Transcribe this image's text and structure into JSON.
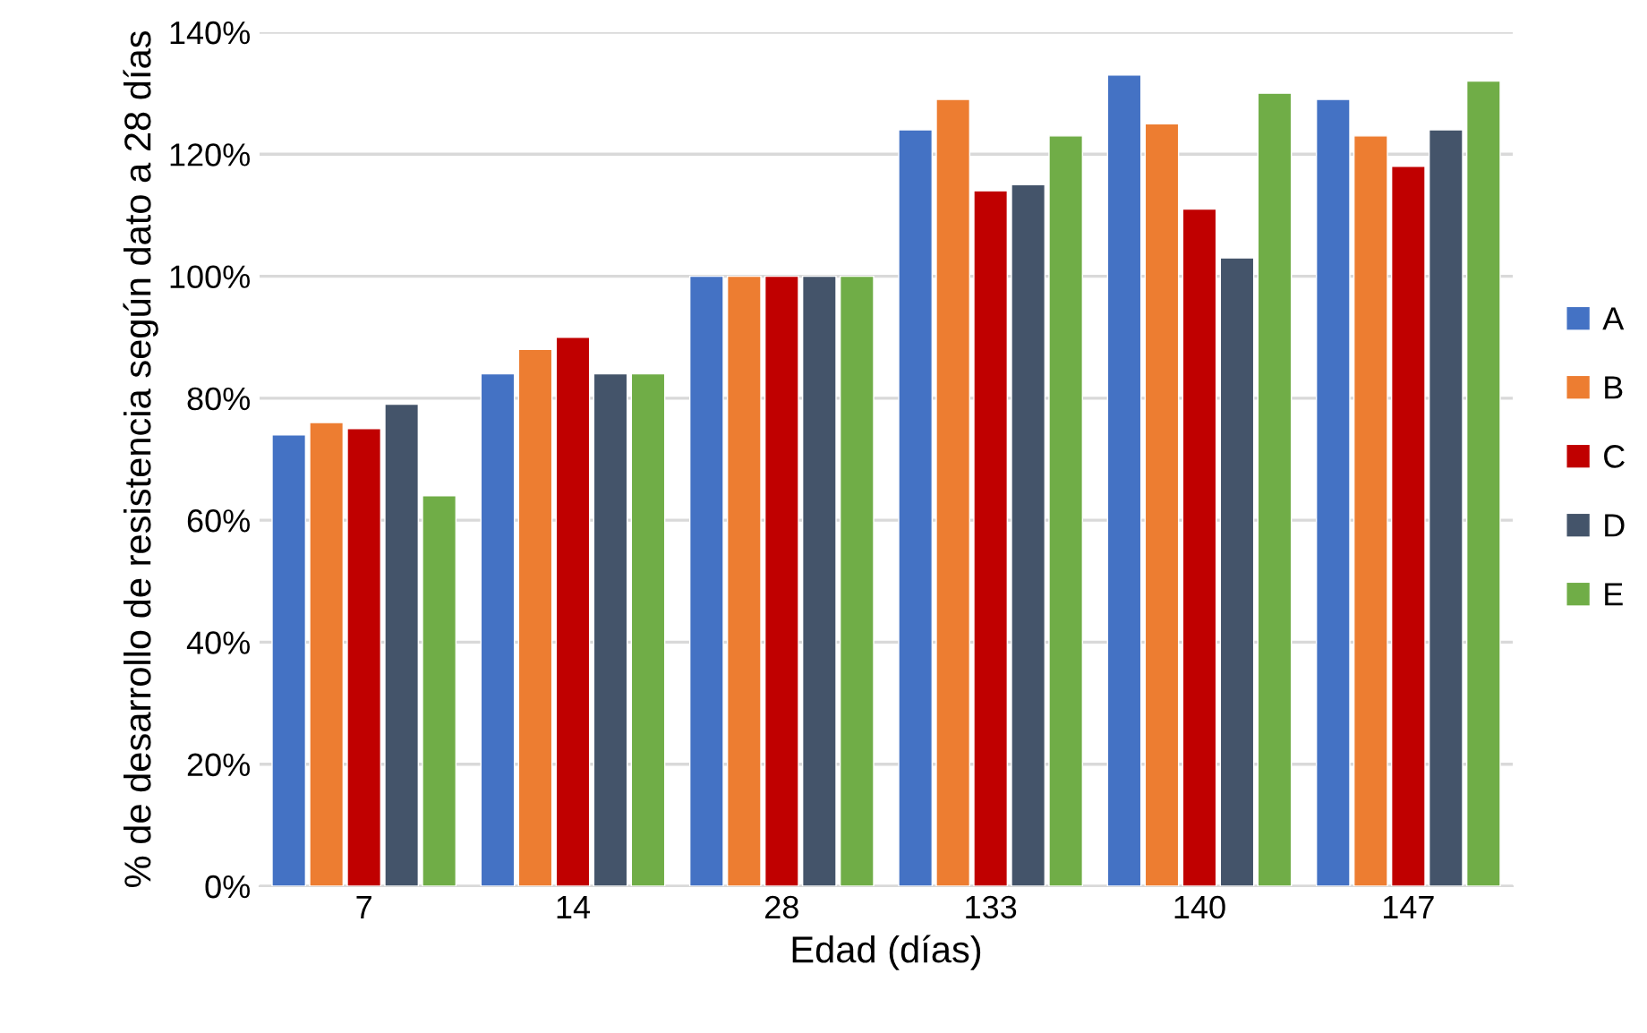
{
  "chart_data": {
    "type": "bar",
    "xlabel": "Edad (días)",
    "ylabel": "% de desarrollo de resistencia según dato a 28 días",
    "categories": [
      "7",
      "14",
      "28",
      "133",
      "140",
      "147"
    ],
    "series": [
      {
        "name": "A",
        "color": "#4472c4",
        "values": [
          74,
          84,
          100,
          124,
          133,
          129
        ]
      },
      {
        "name": "B",
        "color": "#ed7d31",
        "values": [
          76,
          88,
          100,
          129,
          125,
          123
        ]
      },
      {
        "name": "C",
        "color": "#c00000",
        "values": [
          75,
          90,
          100,
          114,
          111,
          118
        ]
      },
      {
        "name": "D",
        "color": "#44546a",
        "values": [
          79,
          84,
          100,
          115,
          103,
          124
        ]
      },
      {
        "name": "E",
        "color": "#70ad47",
        "values": [
          64,
          84,
          100,
          123,
          130,
          132
        ]
      }
    ],
    "ylim": [
      0,
      140
    ],
    "yticks": [
      {
        "value": 0,
        "label": "0%"
      },
      {
        "value": 20,
        "label": "20%"
      },
      {
        "value": 40,
        "label": "40%"
      },
      {
        "value": 60,
        "label": "60%"
      },
      {
        "value": 80,
        "label": "80%"
      },
      {
        "value": 100,
        "label": "100%"
      },
      {
        "value": 120,
        "label": "120%"
      },
      {
        "value": 140,
        "label": "140%"
      }
    ],
    "grid": "y",
    "legend": "right"
  }
}
